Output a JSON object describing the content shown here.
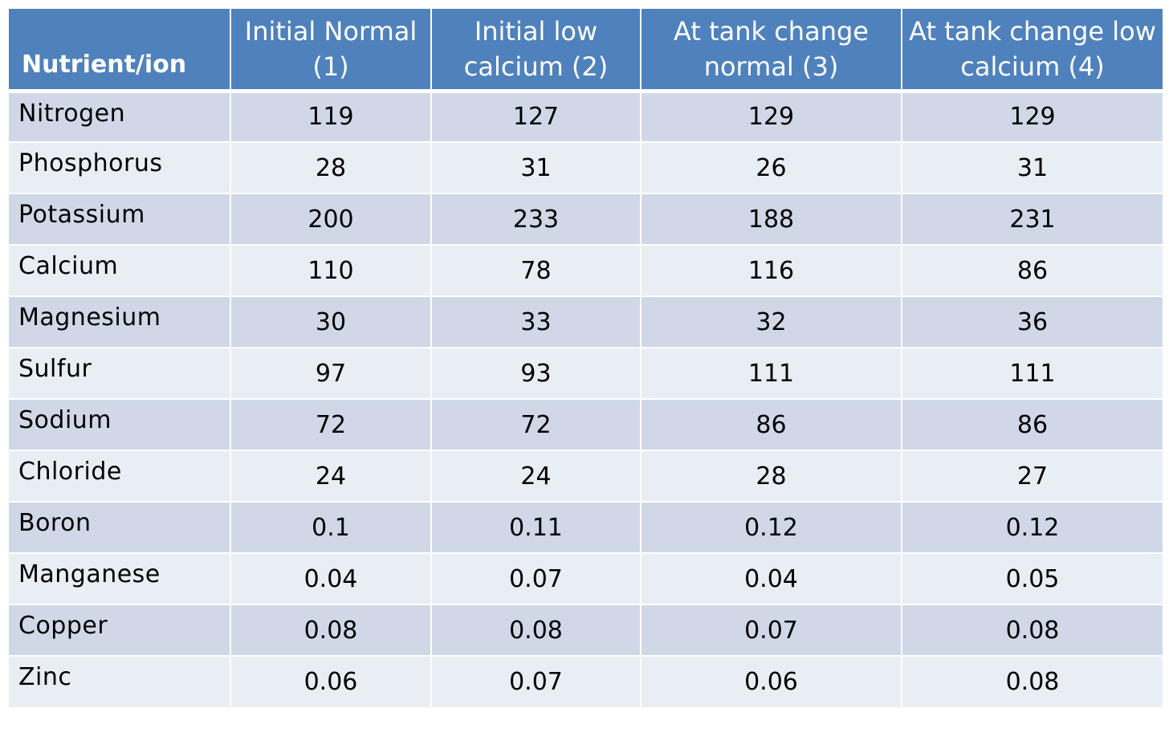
{
  "table": {
    "headers": [
      "Nutrient/ion",
      "Initial Normal (1)",
      "Initial low calcium (2)",
      "At tank change normal  (3)",
      "At tank change low calcium (4)"
    ],
    "rows": [
      [
        "Nitrogen",
        "119",
        "127",
        "129",
        "129"
      ],
      [
        "Phosphorus",
        "28",
        "31",
        "26",
        "31"
      ],
      [
        "Potassium",
        "200",
        "233",
        "188",
        "231"
      ],
      [
        "Calcium",
        "110",
        "78",
        "116",
        "86"
      ],
      [
        "Magnesium",
        "30",
        "33",
        "32",
        "36"
      ],
      [
        "Sulfur",
        "97",
        "93",
        "111",
        "111"
      ],
      [
        "Sodium",
        "72",
        "72",
        "86",
        "86"
      ],
      [
        "Chloride",
        "24",
        "24",
        "28",
        "27"
      ],
      [
        "Boron",
        "0.1",
        "0.11",
        "0.12",
        "0.12"
      ],
      [
        "Manganese",
        "0.04",
        "0.07",
        "0.04",
        "0.05"
      ],
      [
        "Copper",
        "0.08",
        "0.08",
        "0.07",
        "0.08"
      ],
      [
        "Zinc",
        "0.06",
        "0.07",
        "0.06",
        "0.08"
      ]
    ]
  },
  "colors": {
    "header_bg": "#4f81bd",
    "row_odd_bg": "#d0d8e8",
    "row_even_bg": "#e9edf4"
  }
}
